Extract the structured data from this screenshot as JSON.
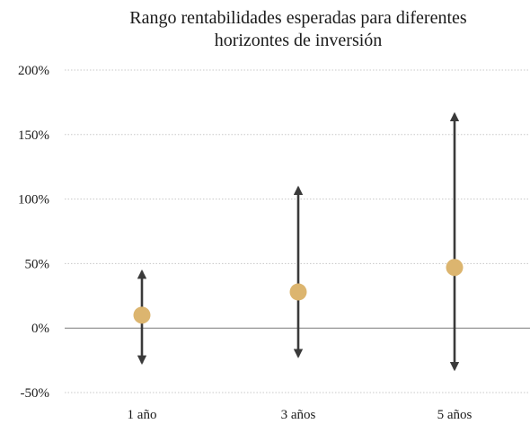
{
  "chart_data": {
    "type": "range",
    "title": "Rango rentabilidades esperadas para diferentes horizontes de inversión",
    "title_lines": [
      "Rango rentabilidades esperadas para diferentes",
      "horizontes de inversión"
    ],
    "categories": [
      "1 año",
      "3 años",
      "5 años"
    ],
    "expected": [
      10,
      28,
      47
    ],
    "low": [
      -27,
      -22,
      -32
    ],
    "high": [
      44,
      109,
      166
    ],
    "y_unit": "%",
    "ylim": [
      -50,
      200
    ],
    "yticks": [
      -50,
      0,
      50,
      100,
      150,
      200
    ],
    "ytick_labels": [
      "-50%",
      "0%",
      "50%",
      "100%",
      "150%",
      "200%"
    ],
    "grid": true,
    "colors": {
      "marker": "#dcb56f",
      "range_line": "#3a3a3a",
      "grid": "#c8c8c8",
      "zero_line": "#7a7a7a"
    }
  }
}
